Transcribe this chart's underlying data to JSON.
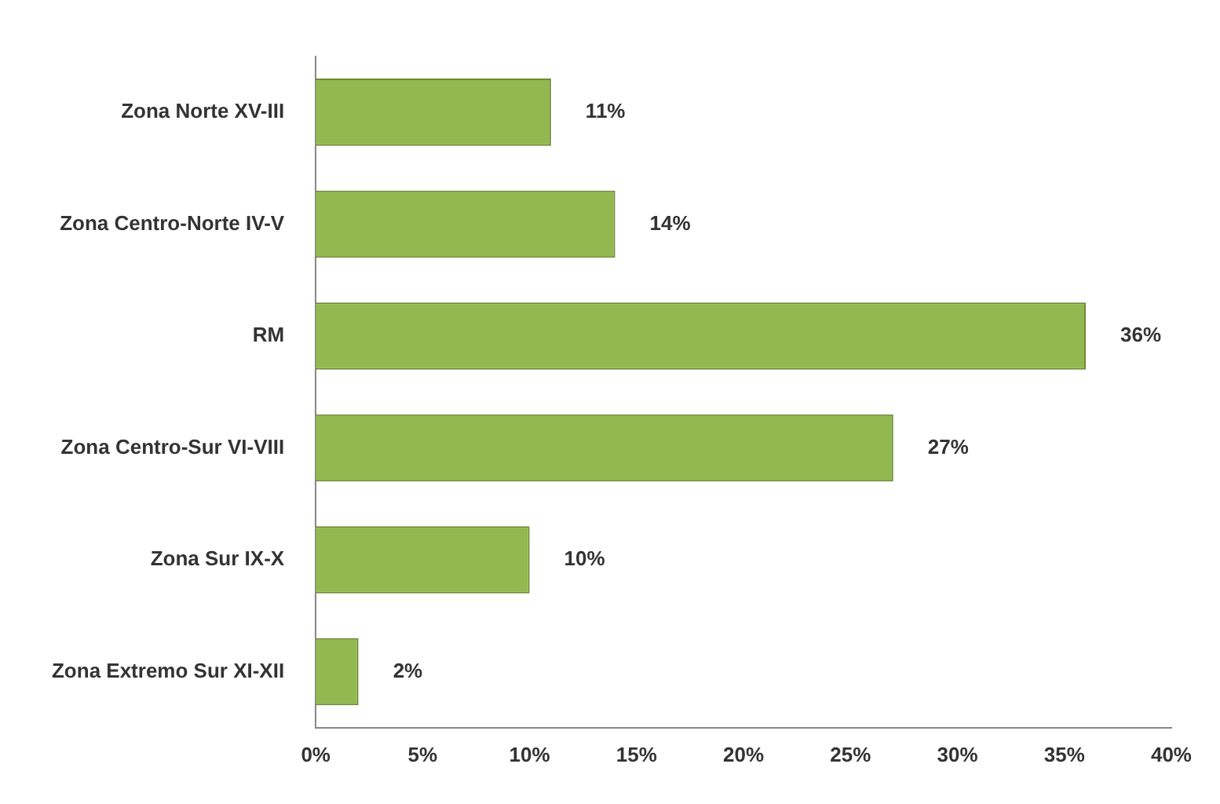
{
  "chart_data": {
    "type": "bar",
    "orientation": "horizontal",
    "categories": [
      "Zona Norte XV-III",
      "Zona Centro-Norte IV-V",
      "RM",
      "Zona Centro-Sur VI-VIII",
      "Zona Sur IX-X",
      "Zona Extremo Sur XI-XII"
    ],
    "values": [
      11,
      14,
      36,
      27,
      10,
      2
    ],
    "value_labels": [
      "11%",
      "14%",
      "36%",
      "27%",
      "10%",
      "2%"
    ],
    "color": "#92b94f",
    "xlim": [
      0,
      40
    ],
    "xticks": [
      {
        "value": 0,
        "label": "0%"
      },
      {
        "value": 5,
        "label": "5%"
      },
      {
        "value": 10,
        "label": "10%"
      },
      {
        "value": 15,
        "label": "15%"
      },
      {
        "value": 20,
        "label": "20%"
      },
      {
        "value": 25,
        "label": "25%"
      },
      {
        "value": 30,
        "label": "30%"
      },
      {
        "value": 35,
        "label": "35%"
      },
      {
        "value": 40,
        "label": "40%"
      }
    ],
    "grid": false,
    "legend": false
  }
}
